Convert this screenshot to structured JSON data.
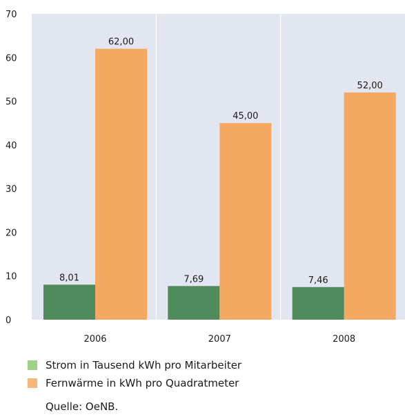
{
  "chart_data": {
    "type": "bar",
    "categories": [
      "2006",
      "2007",
      "2008"
    ],
    "series": [
      {
        "name": "Strom in Tausend kWh pro Mitarbeiter",
        "values": [
          8.01,
          7.69,
          7.46
        ],
        "labels": [
          "8,01",
          "7,69",
          "7,46"
        ],
        "color": "#4f8a5b"
      },
      {
        "name": "Fernwärme in kWh pro Quadratmeter",
        "values": [
          62.0,
          45.0,
          52.0
        ],
        "labels": [
          "62,00",
          "45,00",
          "52,00"
        ],
        "color": "#f4a862"
      }
    ],
    "y_ticks": [
      "0",
      "10",
      "20",
      "30",
      "40",
      "50",
      "60",
      "70"
    ],
    "ylim": [
      0,
      70
    ],
    "title": "",
    "xlabel": "",
    "ylabel": "",
    "grid": true,
    "plot_background": "#e2e6f0",
    "legend_position": "bottom-left"
  },
  "legend": {
    "items": [
      {
        "label": "Strom in Tausend kWh pro Mitarbeiter",
        "color": "#9fd08a"
      },
      {
        "label": "Fernwärme in kWh pro Quadratmeter",
        "color": "#f7b87d"
      }
    ]
  },
  "source": "Quelle: OeNB."
}
